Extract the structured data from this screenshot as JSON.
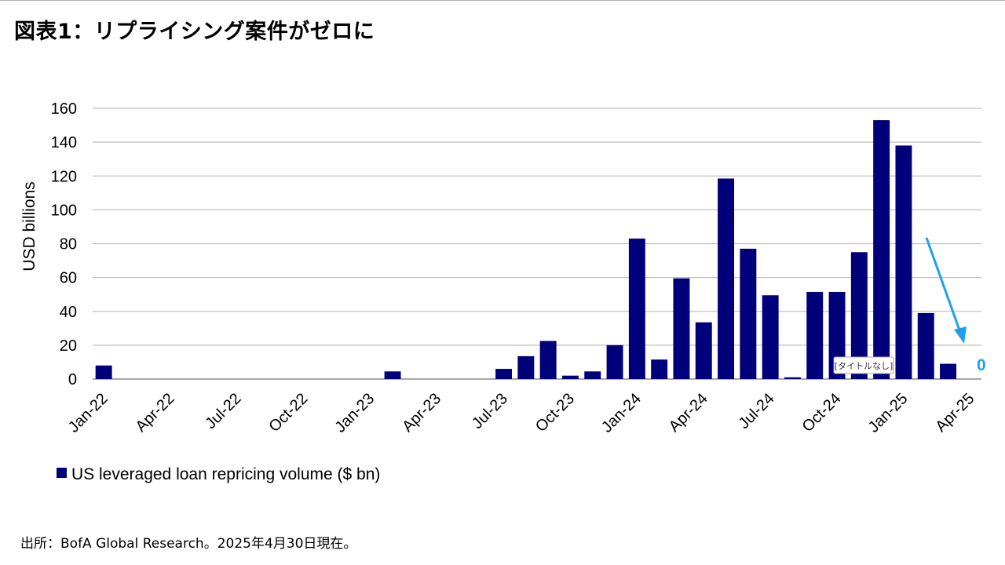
{
  "page": {
    "title": "図表1：リプライシング案件がゼロに",
    "source": "出所：BofA Global Research。2025年4月30日現在。"
  },
  "colors": {
    "bar": "#00007a",
    "grid": "#c0c0c0",
    "annotation": "#1fa0ea"
  },
  "chart_data": {
    "type": "bar",
    "title": "",
    "xlabel": "",
    "ylabel": "USD billions",
    "ylim": [
      0,
      160
    ],
    "yticks": [
      0,
      20,
      40,
      60,
      80,
      100,
      120,
      140,
      160
    ],
    "grid": true,
    "legend_position": "bottom-left",
    "tick_labels": [
      "Jan-22",
      "Apr-22",
      "Jul-22",
      "Oct-22",
      "Jan-23",
      "Apr-23",
      "Jul-23",
      "Oct-23",
      "Jan-24",
      "Apr-24",
      "Jul-24",
      "Oct-24",
      "Jan-25",
      "Apr-25"
    ],
    "categories": [
      "Jan-22",
      "Feb-22",
      "Mar-22",
      "Apr-22",
      "May-22",
      "Jun-22",
      "Jul-22",
      "Aug-22",
      "Sep-22",
      "Oct-22",
      "Nov-22",
      "Dec-22",
      "Jan-23",
      "Feb-23",
      "Mar-23",
      "Apr-23",
      "May-23",
      "Jun-23",
      "Jul-23",
      "Aug-23",
      "Sep-23",
      "Oct-23",
      "Nov-23",
      "Dec-23",
      "Jan-24",
      "Feb-24",
      "Mar-24",
      "Apr-24",
      "May-24",
      "Jun-24",
      "Jul-24",
      "Aug-24",
      "Sep-24",
      "Oct-24",
      "Nov-24",
      "Dec-24",
      "Jan-25",
      "Feb-25",
      "Mar-25",
      "Apr-25"
    ],
    "series": [
      {
        "name": "US leveraged loan repricing volume ($ bn)",
        "values": [
          8,
          0,
          0,
          0,
          0,
          0,
          0,
          0,
          0,
          0,
          0,
          0,
          0,
          4.5,
          0,
          0,
          0,
          0,
          6,
          13.5,
          22.5,
          2,
          4.5,
          20,
          83,
          11.5,
          59.5,
          33.5,
          118.5,
          77,
          49.5,
          1,
          51.5,
          51.5,
          75,
          153,
          138,
          39,
          9,
          0
        ]
      }
    ],
    "annotations": [
      {
        "text": "0",
        "category": "Apr-25",
        "value": 0
      }
    ],
    "tooltip": "[タイトルなし]"
  }
}
